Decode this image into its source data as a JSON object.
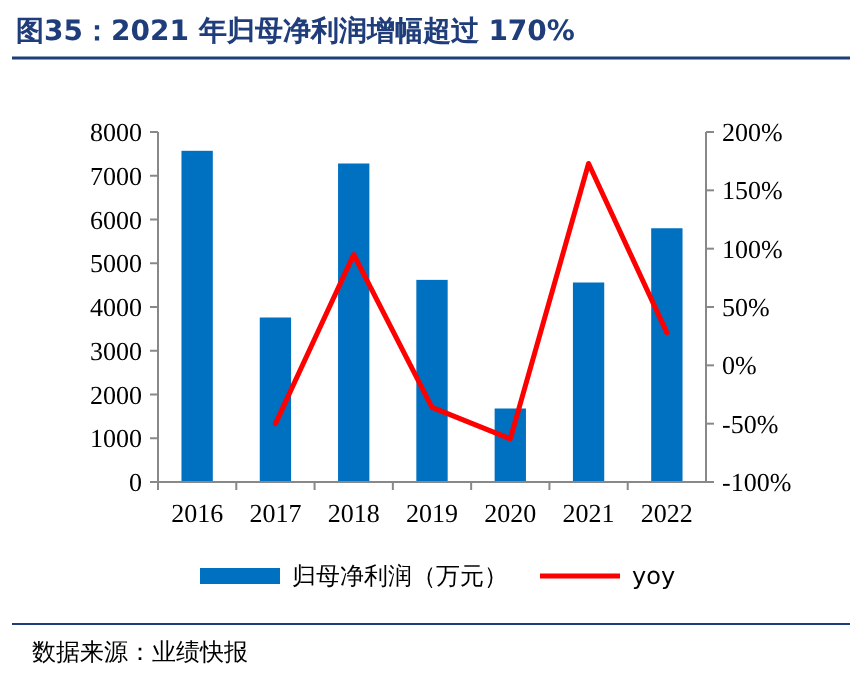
{
  "chart_data": {
    "type": "bar",
    "title": "图35：2021 年归母净利润增幅超过 170%",
    "categories": [
      "2016",
      "2017",
      "2018",
      "2019",
      "2020",
      "2021",
      "2022"
    ],
    "series": [
      {
        "name": "归母净利润（万元）",
        "color": "#0070c0",
        "values": [
          7570,
          3760,
          7280,
          4620,
          1680,
          4560,
          5800
        ]
      },
      {
        "name": "yoy",
        "type": "line",
        "axis": "y2",
        "color": "#ff0000",
        "values": [
          null,
          -50,
          95,
          -36,
          -63,
          173,
          28
        ]
      }
    ],
    "ylim": [
      0,
      8000
    ],
    "yticks": [
      0,
      1000,
      2000,
      3000,
      4000,
      5000,
      6000,
      7000,
      8000
    ],
    "y2lim": [
      -100,
      200
    ],
    "y2ticks": [
      {
        "value": -100,
        "label": "-100%"
      },
      {
        "value": -50,
        "label": "-50%"
      },
      {
        "value": 0,
        "label": "0%"
      },
      {
        "value": 50,
        "label": "50%"
      },
      {
        "value": 100,
        "label": "100%"
      },
      {
        "value": 150,
        "label": "150%"
      },
      {
        "value": 200,
        "label": "200%"
      }
    ],
    "legend": "bottom",
    "annotations": [
      "数据来源：业绩快报"
    ]
  }
}
